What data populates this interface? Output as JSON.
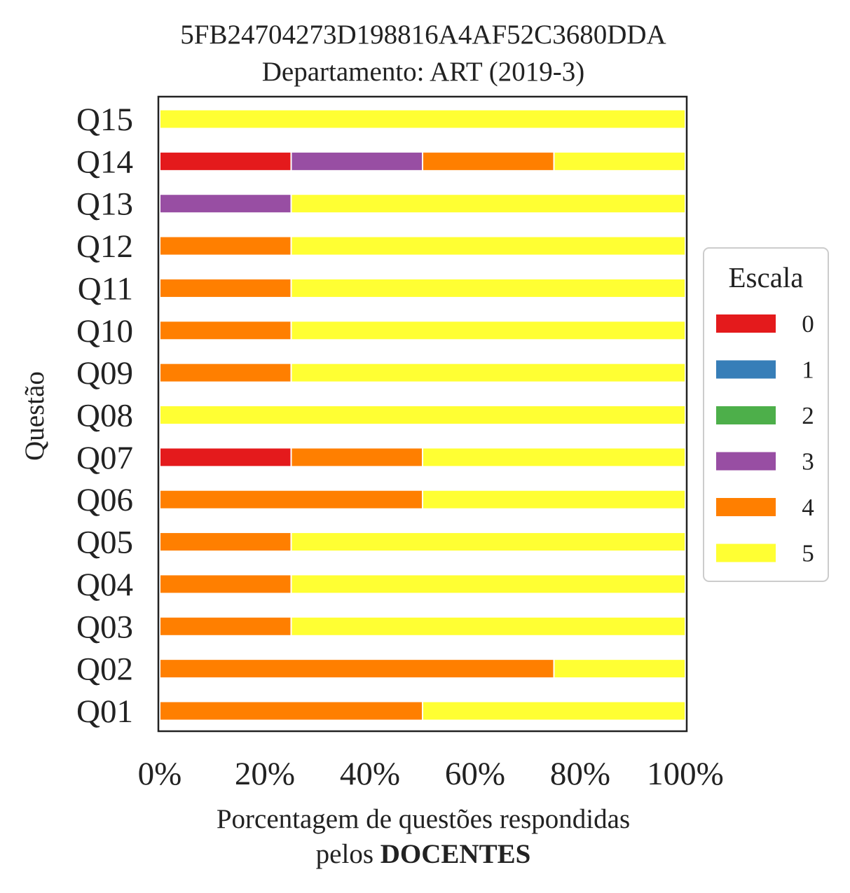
{
  "chart_data": {
    "type": "bar",
    "orientation": "horizontal",
    "stacked": true,
    "title": "5FB24704273D198816A4AF52C3680DDA",
    "subtitle": "Departamento: ART (2019-3)",
    "ylabel": "Questão",
    "xlabel_line1": "Porcentagem de questões respondidas",
    "xlabel_line2_prefix": "pelos ",
    "xlabel_line2_bold": "DOCENTES",
    "xlim": [
      0,
      100
    ],
    "xticks": [
      "0%",
      "20%",
      "40%",
      "60%",
      "80%",
      "100%"
    ],
    "grid": false,
    "legend": {
      "title": "Escala",
      "placement": "right",
      "entries": [
        "0",
        "1",
        "2",
        "3",
        "4",
        "5"
      ]
    },
    "categories": [
      "Q01",
      "Q02",
      "Q03",
      "Q04",
      "Q05",
      "Q06",
      "Q07",
      "Q08",
      "Q09",
      "Q10",
      "Q11",
      "Q12",
      "Q13",
      "Q14",
      "Q15"
    ],
    "series": [
      {
        "name": "0",
        "color": "#e41a1c",
        "values": [
          0,
          0,
          0,
          0,
          0,
          0,
          25,
          0,
          0,
          0,
          0,
          0,
          0,
          25,
          0
        ]
      },
      {
        "name": "1",
        "color": "#377eb8",
        "values": [
          0,
          0,
          0,
          0,
          0,
          0,
          0,
          0,
          0,
          0,
          0,
          0,
          0,
          0,
          0
        ]
      },
      {
        "name": "2",
        "color": "#4daf4a",
        "values": [
          0,
          0,
          0,
          0,
          0,
          0,
          0,
          0,
          0,
          0,
          0,
          0,
          0,
          0,
          0
        ]
      },
      {
        "name": "3",
        "color": "#984ea3",
        "values": [
          0,
          0,
          0,
          0,
          0,
          0,
          0,
          0,
          0,
          0,
          0,
          0,
          25,
          25,
          0
        ]
      },
      {
        "name": "4",
        "color": "#ff7f00",
        "values": [
          50,
          75,
          25,
          25,
          25,
          50,
          25,
          0,
          25,
          25,
          25,
          25,
          0,
          25,
          0
        ]
      },
      {
        "name": "5",
        "color": "#ffff33",
        "values": [
          50,
          25,
          75,
          75,
          75,
          50,
          50,
          100,
          75,
          75,
          75,
          75,
          75,
          25,
          100
        ]
      }
    ]
  }
}
